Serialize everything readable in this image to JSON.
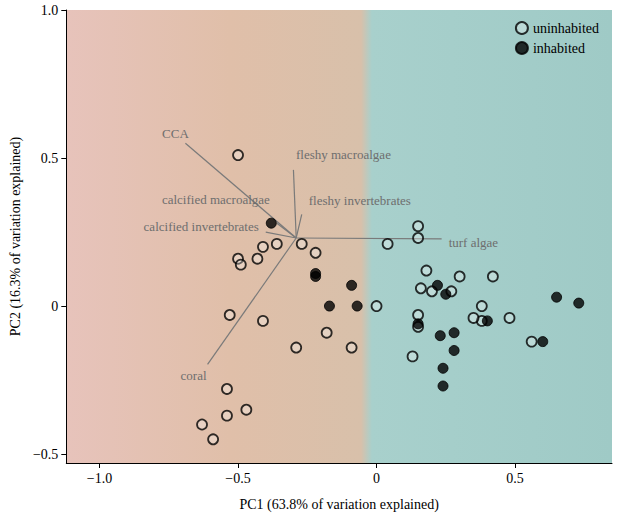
{
  "chart_data": {
    "type": "scatter",
    "x_label": "PC1 (63.8% of variation explained)",
    "y_label": "PC2 (16.3% of variation explained)",
    "xlim": [
      -1.12,
      0.85
    ],
    "xticks": [
      {
        "value": -1.0,
        "label": "−1.0"
      },
      {
        "value": -0.5,
        "label": "−0.5"
      },
      0,
      0.5
    ],
    "ylim": [
      -0.53,
      1.0
    ],
    "yticks": [
      {
        "value": -0.5,
        "label": "−0.5"
      },
      0,
      0.5,
      {
        "value": 1.0,
        "label": "1.0"
      }
    ],
    "grid": false,
    "legend": "upper right",
    "series": [
      {
        "name": "uninhabited",
        "color": "#000000",
        "marker": "open",
        "x": [
          -0.5,
          -0.5,
          -0.49,
          -0.43,
          -0.41,
          -0.36,
          -0.27,
          -0.22,
          -0.53,
          -0.41,
          -0.29,
          -0.18,
          -0.09,
          0.0,
          0.04,
          0.15,
          0.15,
          0.18,
          0.16,
          0.2,
          0.27,
          0.15,
          0.15,
          0.13,
          0.3,
          0.38,
          0.38,
          0.42,
          0.48,
          0.56,
          -0.54,
          -0.54,
          -0.47,
          -0.63,
          -0.59,
          0.35
        ],
        "y": [
          0.51,
          0.16,
          0.14,
          0.16,
          0.2,
          0.21,
          0.21,
          0.18,
          -0.03,
          -0.05,
          -0.14,
          -0.09,
          -0.14,
          0.0,
          0.21,
          0.27,
          0.23,
          0.12,
          0.06,
          0.05,
          0.05,
          -0.03,
          -0.07,
          -0.17,
          0.1,
          0.0,
          -0.05,
          0.1,
          -0.04,
          -0.12,
          -0.28,
          -0.37,
          -0.35,
          -0.4,
          -0.45,
          -0.04
        ]
      },
      {
        "name": "inhabited",
        "color": "#000000",
        "marker": "filled",
        "x": [
          -0.38,
          -0.22,
          -0.22,
          -0.17,
          -0.09,
          -0.07,
          0.22,
          0.25,
          0.15,
          0.23,
          0.28,
          0.28,
          0.24,
          0.24,
          0.4,
          0.6,
          0.65,
          0.73
        ],
        "y": [
          0.28,
          0.11,
          0.1,
          0.0,
          0.07,
          0.0,
          0.07,
          0.04,
          -0.06,
          -0.1,
          -0.09,
          -0.15,
          -0.21,
          -0.27,
          -0.05,
          -0.12,
          0.03,
          0.01
        ]
      }
    ],
    "loadings": {
      "origin": [
        -0.29,
        0.23
      ],
      "vectors": [
        {
          "name": "CCA",
          "x": -0.69,
          "y": 0.55
        },
        {
          "name": "fleshy macroalgae",
          "x": -0.3,
          "y": 0.46
        },
        {
          "name": "calcified macroalgae",
          "x": -0.36,
          "y": 0.28
        },
        {
          "name": "calcified invertebrates",
          "x": -0.4,
          "y": 0.25
        },
        {
          "name": "fleshy invertebrates",
          "x": -0.27,
          "y": 0.31
        },
        {
          "name": "turf algae",
          "x": 0.235,
          "y": 0.227
        },
        {
          "name": "coral",
          "x": -0.61,
          "y": -0.197
        }
      ]
    }
  }
}
